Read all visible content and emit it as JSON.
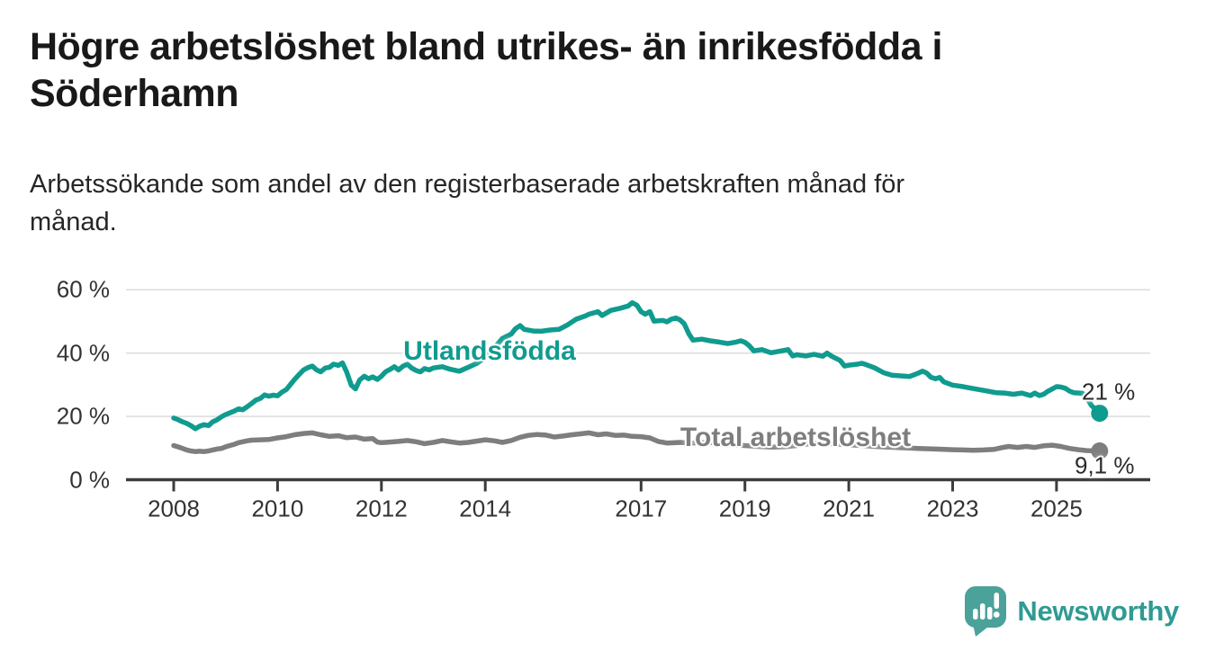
{
  "header": {
    "title": "Högre arbetslöshet bland utrikes- än inrikesfödda i\nSöderhamn",
    "subtitle": "Arbetssökande som andel av den registerbaserade arbetskraften månad för\nmånad."
  },
  "chart_data": {
    "type": "line",
    "title": "Högre arbetslöshet bland utrikes- än inrikesfödda i Söderhamn",
    "subtitle": "Arbetssökande som andel av den registerbaserade arbetskraften månad för månad.",
    "xlabel": "",
    "ylabel": "",
    "grid": "horizontal",
    "legend_position": "inline-labels",
    "x_axis": {
      "tick_years": [
        2008,
        2010,
        2012,
        2014,
        2017,
        2019,
        2021,
        2023,
        2025
      ],
      "range": [
        2007.1,
        2026.8
      ]
    },
    "y_axis": {
      "tick_values": [
        0,
        20,
        40,
        60
      ],
      "tick_labels": [
        "0 %",
        "20 %",
        "40 %",
        "60 %"
      ],
      "range": [
        0,
        63
      ],
      "unit": "%"
    },
    "series": [
      {
        "name": "Utlandsfödda",
        "color": "#109B8F",
        "end_label": "21 %",
        "end_value": 21,
        "points": [
          [
            2008.0,
            19.5
          ],
          [
            2008.08,
            19.0
          ],
          [
            2008.17,
            18.3
          ],
          [
            2008.25,
            17.8
          ],
          [
            2008.33,
            17.1
          ],
          [
            2008.42,
            16.1
          ],
          [
            2008.5,
            16.9
          ],
          [
            2008.58,
            17.4
          ],
          [
            2008.67,
            17.1
          ],
          [
            2008.75,
            18.3
          ],
          [
            2008.83,
            18.9
          ],
          [
            2008.92,
            19.9
          ],
          [
            2009.0,
            20.6
          ],
          [
            2009.08,
            21.1
          ],
          [
            2009.17,
            21.7
          ],
          [
            2009.25,
            22.4
          ],
          [
            2009.33,
            22.1
          ],
          [
            2009.42,
            23.1
          ],
          [
            2009.5,
            24.1
          ],
          [
            2009.58,
            25.1
          ],
          [
            2009.67,
            25.7
          ],
          [
            2009.75,
            26.8
          ],
          [
            2009.83,
            26.4
          ],
          [
            2009.92,
            26.7
          ],
          [
            2010.0,
            26.5
          ],
          [
            2010.08,
            27.6
          ],
          [
            2010.17,
            28.5
          ],
          [
            2010.25,
            30.1
          ],
          [
            2010.33,
            31.7
          ],
          [
            2010.42,
            33.3
          ],
          [
            2010.5,
            34.7
          ],
          [
            2010.58,
            35.4
          ],
          [
            2010.67,
            35.9
          ],
          [
            2010.75,
            34.7
          ],
          [
            2010.83,
            34.1
          ],
          [
            2010.92,
            35.3
          ],
          [
            2011.0,
            35.5
          ],
          [
            2011.08,
            36.5
          ],
          [
            2011.17,
            36.1
          ],
          [
            2011.25,
            36.9
          ],
          [
            2011.33,
            34.1
          ],
          [
            2011.42,
            29.9
          ],
          [
            2011.5,
            28.7
          ],
          [
            2011.58,
            31.5
          ],
          [
            2011.67,
            32.7
          ],
          [
            2011.75,
            31.9
          ],
          [
            2011.83,
            32.5
          ],
          [
            2011.92,
            31.7
          ],
          [
            2012.0,
            32.7
          ],
          [
            2012.08,
            34.1
          ],
          [
            2012.17,
            34.9
          ],
          [
            2012.25,
            35.7
          ],
          [
            2012.33,
            34.7
          ],
          [
            2012.42,
            35.9
          ],
          [
            2012.5,
            36.5
          ],
          [
            2012.58,
            35.3
          ],
          [
            2012.67,
            34.5
          ],
          [
            2012.75,
            34.1
          ],
          [
            2012.83,
            35.1
          ],
          [
            2012.92,
            34.7
          ],
          [
            2013.0,
            35.3
          ],
          [
            2013.17,
            35.7
          ],
          [
            2013.33,
            34.9
          ],
          [
            2013.5,
            34.3
          ],
          [
            2013.67,
            35.5
          ],
          [
            2013.83,
            36.7
          ],
          [
            2014.0,
            38.6
          ],
          [
            2014.17,
            41.6
          ],
          [
            2014.33,
            44.6
          ],
          [
            2014.5,
            46.0
          ],
          [
            2014.58,
            47.7
          ],
          [
            2014.67,
            48.7
          ],
          [
            2014.75,
            47.5
          ],
          [
            2014.92,
            47.0
          ],
          [
            2015.08,
            46.9
          ],
          [
            2015.25,
            47.3
          ],
          [
            2015.42,
            47.5
          ],
          [
            2015.58,
            48.9
          ],
          [
            2015.75,
            50.7
          ],
          [
            2015.92,
            51.7
          ],
          [
            2016.0,
            52.3
          ],
          [
            2016.17,
            53.1
          ],
          [
            2016.25,
            51.9
          ],
          [
            2016.42,
            53.5
          ],
          [
            2016.58,
            54.1
          ],
          [
            2016.75,
            54.9
          ],
          [
            2016.83,
            55.9
          ],
          [
            2016.92,
            55.1
          ],
          [
            2017.0,
            53.1
          ],
          [
            2017.08,
            52.3
          ],
          [
            2017.17,
            53.1
          ],
          [
            2017.25,
            50.1
          ],
          [
            2017.42,
            50.3
          ],
          [
            2017.5,
            49.9
          ],
          [
            2017.58,
            50.7
          ],
          [
            2017.67,
            51.1
          ],
          [
            2017.75,
            50.5
          ],
          [
            2017.83,
            49.3
          ],
          [
            2017.92,
            46.1
          ],
          [
            2018.0,
            44.1
          ],
          [
            2018.17,
            44.4
          ],
          [
            2018.33,
            43.9
          ],
          [
            2018.5,
            43.5
          ],
          [
            2018.67,
            43.0
          ],
          [
            2018.83,
            43.5
          ],
          [
            2018.92,
            43.9
          ],
          [
            2019.0,
            43.4
          ],
          [
            2019.08,
            42.4
          ],
          [
            2019.17,
            40.7
          ],
          [
            2019.33,
            41.1
          ],
          [
            2019.5,
            40.1
          ],
          [
            2019.67,
            40.6
          ],
          [
            2019.83,
            41.1
          ],
          [
            2019.92,
            39.1
          ],
          [
            2020.0,
            39.5
          ],
          [
            2020.17,
            39.1
          ],
          [
            2020.33,
            39.6
          ],
          [
            2020.5,
            39.0
          ],
          [
            2020.58,
            40.0
          ],
          [
            2020.67,
            39.0
          ],
          [
            2020.83,
            37.7
          ],
          [
            2020.92,
            35.9
          ],
          [
            2021.0,
            36.2
          ],
          [
            2021.17,
            36.5
          ],
          [
            2021.25,
            36.8
          ],
          [
            2021.33,
            36.4
          ],
          [
            2021.5,
            35.3
          ],
          [
            2021.67,
            33.8
          ],
          [
            2021.83,
            33.0
          ],
          [
            2022.0,
            32.8
          ],
          [
            2022.17,
            32.6
          ],
          [
            2022.33,
            33.6
          ],
          [
            2022.42,
            34.3
          ],
          [
            2022.5,
            33.7
          ],
          [
            2022.58,
            32.4
          ],
          [
            2022.67,
            31.9
          ],
          [
            2022.75,
            32.3
          ],
          [
            2022.83,
            30.9
          ],
          [
            2023.0,
            29.9
          ],
          [
            2023.17,
            29.5
          ],
          [
            2023.33,
            29.0
          ],
          [
            2023.5,
            28.5
          ],
          [
            2023.67,
            28.0
          ],
          [
            2023.83,
            27.5
          ],
          [
            2024.0,
            27.4
          ],
          [
            2024.17,
            27.0
          ],
          [
            2024.33,
            27.4
          ],
          [
            2024.5,
            26.6
          ],
          [
            2024.58,
            27.4
          ],
          [
            2024.67,
            26.6
          ],
          [
            2024.75,
            27.0
          ],
          [
            2024.83,
            27.9
          ],
          [
            2025.0,
            29.4
          ],
          [
            2025.08,
            29.3
          ],
          [
            2025.17,
            28.9
          ],
          [
            2025.25,
            28.0
          ],
          [
            2025.33,
            27.5
          ],
          [
            2025.5,
            27.3
          ],
          [
            2025.58,
            26.0
          ],
          [
            2025.67,
            23.5
          ],
          [
            2025.83,
            21.0
          ]
        ]
      },
      {
        "name": "Total arbetslöshet",
        "color": "#7E7E7E",
        "end_label": "9,1 %",
        "end_value": 9.1,
        "points": [
          [
            2008.0,
            10.8
          ],
          [
            2008.08,
            10.4
          ],
          [
            2008.17,
            9.9
          ],
          [
            2008.25,
            9.4
          ],
          [
            2008.33,
            9.1
          ],
          [
            2008.42,
            8.9
          ],
          [
            2008.5,
            9.0
          ],
          [
            2008.58,
            8.9
          ],
          [
            2008.67,
            9.1
          ],
          [
            2008.75,
            9.4
          ],
          [
            2008.83,
            9.7
          ],
          [
            2008.92,
            9.9
          ],
          [
            2009.0,
            10.4
          ],
          [
            2009.08,
            10.8
          ],
          [
            2009.17,
            11.2
          ],
          [
            2009.25,
            11.7
          ],
          [
            2009.33,
            12.0
          ],
          [
            2009.42,
            12.3
          ],
          [
            2009.5,
            12.5
          ],
          [
            2009.67,
            12.6
          ],
          [
            2009.83,
            12.7
          ],
          [
            2010.0,
            13.2
          ],
          [
            2010.17,
            13.6
          ],
          [
            2010.33,
            14.2
          ],
          [
            2010.5,
            14.6
          ],
          [
            2010.67,
            14.8
          ],
          [
            2010.83,
            14.2
          ],
          [
            2011.0,
            13.7
          ],
          [
            2011.17,
            13.9
          ],
          [
            2011.33,
            13.3
          ],
          [
            2011.5,
            13.5
          ],
          [
            2011.67,
            12.8
          ],
          [
            2011.83,
            13.0
          ],
          [
            2011.92,
            11.9
          ],
          [
            2012.0,
            11.7
          ],
          [
            2012.17,
            11.9
          ],
          [
            2012.33,
            12.1
          ],
          [
            2012.5,
            12.4
          ],
          [
            2012.67,
            12.0
          ],
          [
            2012.83,
            11.4
          ],
          [
            2013.0,
            11.8
          ],
          [
            2013.17,
            12.4
          ],
          [
            2013.33,
            12.0
          ],
          [
            2013.5,
            11.6
          ],
          [
            2013.67,
            11.8
          ],
          [
            2013.83,
            12.2
          ],
          [
            2014.0,
            12.6
          ],
          [
            2014.17,
            12.3
          ],
          [
            2014.33,
            11.8
          ],
          [
            2014.5,
            12.4
          ],
          [
            2014.67,
            13.4
          ],
          [
            2014.83,
            14.0
          ],
          [
            2015.0,
            14.3
          ],
          [
            2015.17,
            14.1
          ],
          [
            2015.33,
            13.5
          ],
          [
            2015.5,
            13.8
          ],
          [
            2015.67,
            14.2
          ],
          [
            2015.83,
            14.5
          ],
          [
            2016.0,
            14.8
          ],
          [
            2016.17,
            14.2
          ],
          [
            2016.33,
            14.5
          ],
          [
            2016.5,
            14.0
          ],
          [
            2016.67,
            14.1
          ],
          [
            2016.83,
            13.7
          ],
          [
            2017.0,
            13.6
          ],
          [
            2017.17,
            13.2
          ],
          [
            2017.33,
            12.1
          ],
          [
            2017.5,
            11.6
          ],
          [
            2017.75,
            11.8
          ],
          [
            2018.0,
            11.6
          ],
          [
            2018.25,
            11.9
          ],
          [
            2018.5,
            11.4
          ],
          [
            2018.75,
            11.0
          ],
          [
            2019.0,
            10.8
          ],
          [
            2019.25,
            10.5
          ],
          [
            2019.5,
            10.3
          ],
          [
            2019.75,
            10.4
          ],
          [
            2020.0,
            10.8
          ],
          [
            2020.25,
            11.4
          ],
          [
            2020.5,
            11.6
          ],
          [
            2020.75,
            11.3
          ],
          [
            2021.0,
            11.0
          ],
          [
            2021.25,
            10.8
          ],
          [
            2021.5,
            10.5
          ],
          [
            2021.75,
            10.3
          ],
          [
            2022.0,
            10.1
          ],
          [
            2022.33,
            9.9
          ],
          [
            2022.67,
            9.7
          ],
          [
            2023.0,
            9.5
          ],
          [
            2023.2,
            9.4
          ],
          [
            2023.4,
            9.3
          ],
          [
            2023.6,
            9.4
          ],
          [
            2023.8,
            9.6
          ],
          [
            2023.94,
            10.1
          ],
          [
            2024.08,
            10.5
          ],
          [
            2024.25,
            10.2
          ],
          [
            2024.42,
            10.5
          ],
          [
            2024.58,
            10.2
          ],
          [
            2024.75,
            10.7
          ],
          [
            2024.92,
            10.9
          ],
          [
            2025.08,
            10.5
          ],
          [
            2025.25,
            9.9
          ],
          [
            2025.42,
            9.5
          ],
          [
            2025.58,
            9.2
          ],
          [
            2025.83,
            9.1
          ]
        ]
      }
    ]
  },
  "style": {
    "grid_color": "#DCDCDC",
    "axis_color": "#3C3C3C",
    "tick_label_color": "#333333"
  },
  "branding": {
    "logo_text": "Newsworthy",
    "logo_text_color": "#2F9B93",
    "logo_icon_color": "#4AA29A"
  }
}
